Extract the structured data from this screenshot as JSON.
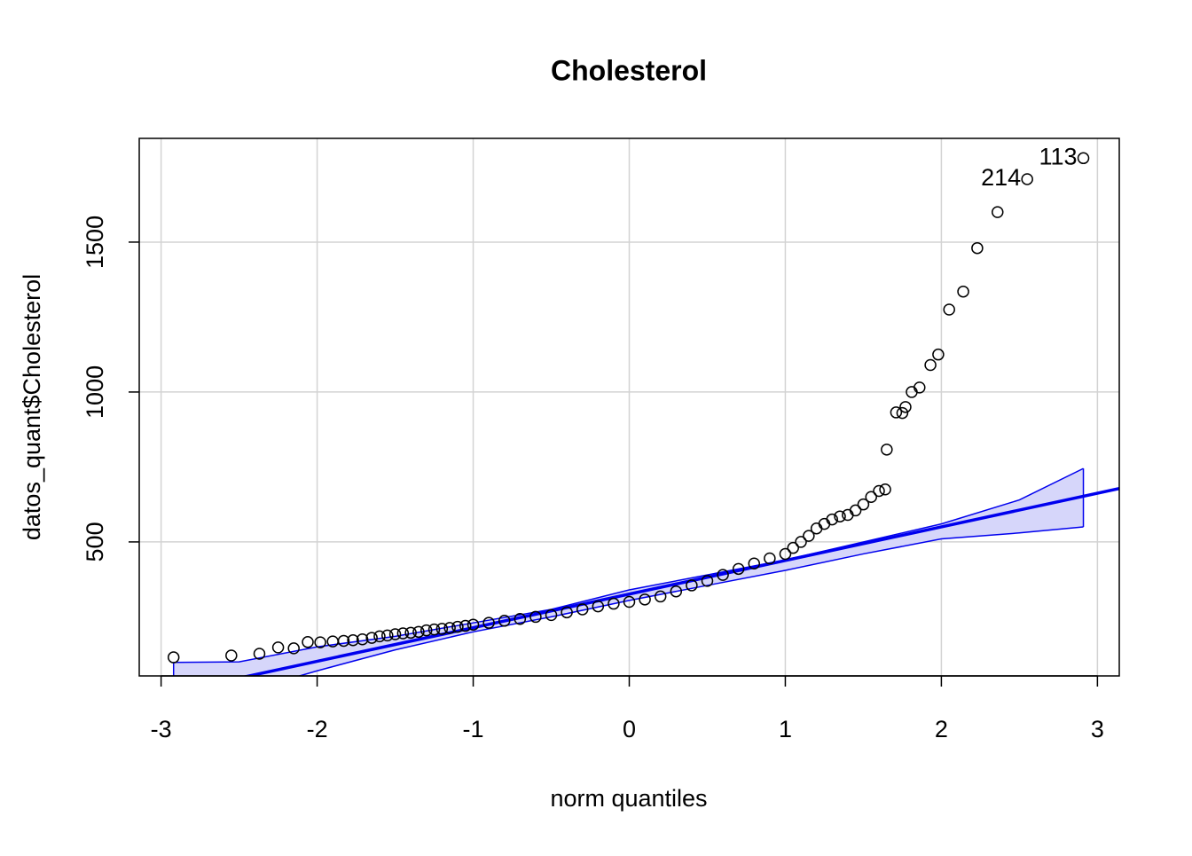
{
  "chart_data": {
    "type": "scatter",
    "title": "Cholesterol",
    "x_label": "norm quantiles",
    "y_label": "datos_quant$Cholesterol",
    "xlim": [
      -3.14,
      3.14
    ],
    "ylim": [
      53,
      1846
    ],
    "xticks": [
      -3,
      -2,
      -1,
      0,
      1,
      2,
      3
    ],
    "yticks": [
      500,
      1000,
      1500
    ],
    "grid": true,
    "point_color": "#000000",
    "x": [
      -2.92,
      -2.55,
      -2.37,
      -2.25,
      -2.15,
      -2.06,
      -1.98,
      -1.9,
      -1.83,
      -1.77,
      -1.71,
      -1.65,
      -1.6,
      -1.55,
      -1.5,
      -1.45,
      -1.4,
      -1.35,
      -1.3,
      -1.25,
      -1.2,
      -1.15,
      -1.1,
      -1.05,
      -1.0,
      -0.9,
      -0.8,
      -0.7,
      -0.6,
      -0.5,
      -0.4,
      -0.3,
      -0.2,
      -0.1,
      0,
      0.1,
      0.2,
      0.3,
      0.4,
      0.5,
      0.6,
      0.7,
      0.8,
      0.9,
      1.0,
      1.05,
      1.1,
      1.15,
      1.2,
      1.25,
      1.3,
      1.35,
      1.4,
      1.45,
      1.5,
      1.55,
      1.6,
      1.64,
      1.65,
      1.71,
      1.75,
      1.77,
      1.81,
      1.86,
      1.93,
      1.98,
      2.05,
      2.14,
      2.23,
      2.36,
      2.55,
      2.91
    ],
    "values": [
      115,
      121,
      127,
      148,
      145,
      166,
      165,
      168,
      170,
      172,
      175,
      180,
      185,
      188,
      192,
      195,
      197,
      200,
      205,
      208,
      210,
      213,
      217,
      220,
      224,
      230,
      237,
      243,
      250,
      256,
      265,
      275,
      285,
      294,
      300,
      308,
      318,
      335,
      355,
      370,
      390,
      410,
      428,
      445,
      460,
      480,
      500,
      520,
      545,
      560,
      575,
      585,
      590,
      605,
      625,
      650,
      670,
      675,
      808,
      932,
      930,
      950,
      1000,
      1015,
      1090,
      1125,
      1275,
      1335,
      1480,
      1600,
      1710,
      1780
    ],
    "point_labels": [
      null,
      null,
      null,
      null,
      null,
      null,
      null,
      null,
      null,
      null,
      null,
      null,
      null,
      null,
      null,
      null,
      null,
      null,
      null,
      null,
      null,
      null,
      null,
      null,
      null,
      null,
      null,
      null,
      null,
      null,
      null,
      null,
      null,
      null,
      null,
      null,
      null,
      null,
      null,
      null,
      null,
      null,
      null,
      null,
      null,
      null,
      null,
      null,
      null,
      null,
      null,
      null,
      null,
      null,
      null,
      null,
      null,
      null,
      null,
      null,
      null,
      null,
      null,
      null,
      null,
      null,
      null,
      null,
      null,
      null,
      "214",
      "113"
    ],
    "reference_line": {
      "color": "#0000ee",
      "x": [
        -3.14,
        3.14
      ],
      "values": [
        -26,
        678
      ]
    },
    "envelope": {
      "color": "#0000ee",
      "fill": "#d6d6fa",
      "x": [
        -2.92,
        -2.5,
        -2,
        -1.5,
        -1,
        -0.5,
        0,
        0.5,
        1,
        1.5,
        2,
        2.5,
        2.91
      ],
      "upper": [
        98,
        100,
        150,
        185,
        230,
        275,
        340,
        390,
        440,
        500,
        560,
        640,
        745
      ],
      "lower": [
        -60,
        -5,
        70,
        140,
        200,
        250,
        305,
        355,
        405,
        460,
        510,
        530,
        550
      ]
    }
  }
}
